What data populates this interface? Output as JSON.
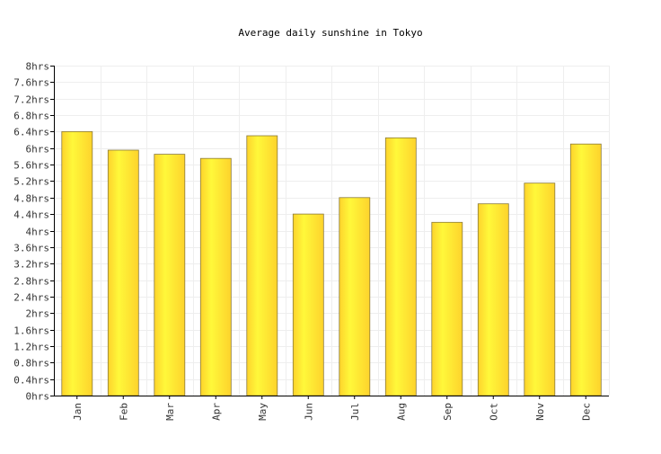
{
  "chart_data": {
    "type": "bar",
    "title": "Average daily sunshine in Tokyo",
    "xlabel": "",
    "ylabel": "",
    "categories": [
      "Jan",
      "Feb",
      "Mar",
      "Apr",
      "May",
      "Jun",
      "Jul",
      "Aug",
      "Sep",
      "Oct",
      "Nov",
      "Dec"
    ],
    "values": [
      6.4,
      5.95,
      5.85,
      5.75,
      6.3,
      4.4,
      4.8,
      6.25,
      4.2,
      4.65,
      5.15,
      6.1
    ],
    "ylim": [
      0,
      8
    ],
    "yticks": [
      0,
      0.4,
      0.8,
      1.2,
      1.6,
      2,
      2.4,
      2.8,
      3.2,
      3.6,
      4,
      4.4,
      4.8,
      5.2,
      5.6,
      6,
      6.4,
      6.8,
      7.2,
      7.6,
      8
    ],
    "ytick_labels": [
      "0hrs",
      "0.4hrs",
      "0.8hrs",
      "1.2hrs",
      "1.6hrs",
      "2hrs",
      "2.4hrs",
      "2.8hrs",
      "3.2hrs",
      "3.6hrs",
      "4hrs",
      "4.4hrs",
      "4.8hrs",
      "5.2hrs",
      "5.6hrs",
      "6hrs",
      "6.4hrs",
      "6.8hrs",
      "7.2hrs",
      "7.6hrs",
      "8hrs"
    ],
    "grid": true,
    "legend": "none",
    "colors": {
      "bar_light": "#fff83a",
      "bar_dark": "#fdd32c",
      "bar_stroke": "#8a7a3a",
      "grid": "#eeeeee",
      "axis": "#000000"
    }
  }
}
